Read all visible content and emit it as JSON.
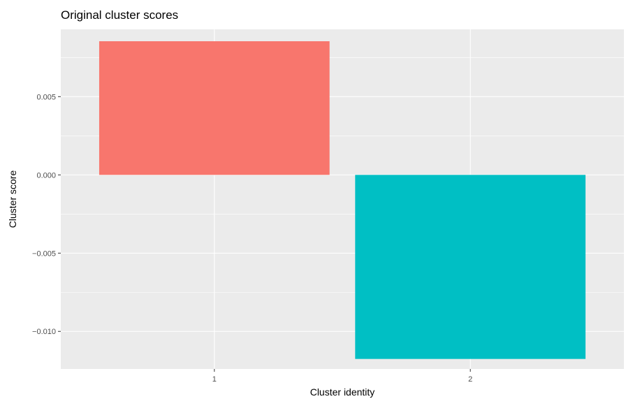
{
  "chart_data": {
    "type": "bar",
    "title": "Original cluster scores",
    "xlabel": "Cluster identity",
    "ylabel": "Cluster score",
    "categories": [
      "1",
      "2"
    ],
    "values": [
      0.00854,
      -0.01176
    ],
    "colors": [
      "#F8766D",
      "#00BFC4"
    ],
    "ylim": [
      -0.0124,
      0.0093
    ],
    "yticks": [
      0.005,
      0.0,
      -0.005,
      -0.01
    ],
    "ytick_labels": [
      "0.005",
      "0.000",
      "−0.005",
      "−0.010"
    ],
    "grid": true,
    "panel_background": "#EBEBEB",
    "grid_color": "#FFFFFF",
    "legend": "none"
  }
}
